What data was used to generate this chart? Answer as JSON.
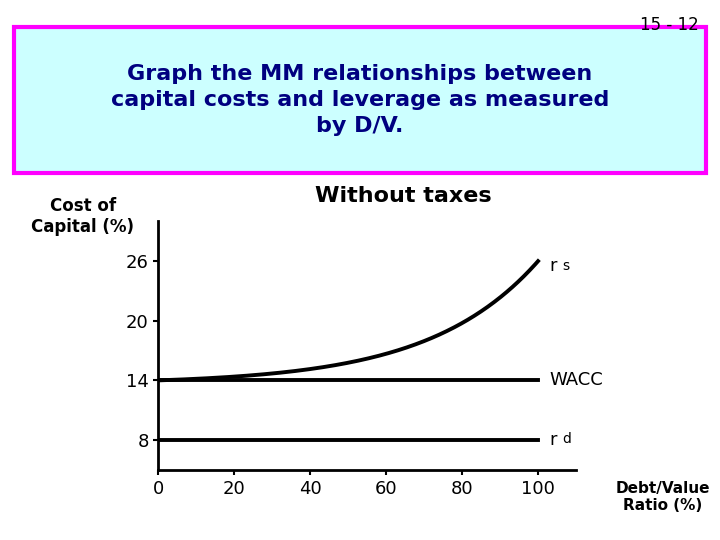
{
  "slide_number": "15 - 12",
  "title_text": "Graph the MM relationships between\ncapital costs and leverage as measured\nby D/V.",
  "subtitle": "Without taxes",
  "ylabel_line1": "Cost of",
  "ylabel_line2": "Capital (%)",
  "xlabel_line1": "Debt/Value",
  "xlabel_line2": "Ratio (%)",
  "x_ticks": [
    0,
    20,
    40,
    60,
    80,
    100
  ],
  "y_ticks": [
    8,
    14,
    20,
    26
  ],
  "xlim": [
    0,
    110
  ],
  "ylim": [
    5,
    30
  ],
  "wacc_value": 14,
  "rd_value": 8,
  "rs_k": 3.5,
  "rs_start": 14,
  "rs_end": 26,
  "background_color": "#ffffff",
  "title_bg_color": "#ccffff",
  "title_border_color": "#ff00ff",
  "title_text_color": "#000080",
  "curve_color": "#000000",
  "label_wacc": "WACC",
  "title_fontsize": 16,
  "subtitle_fontsize": 16,
  "tick_fontsize": 13,
  "label_fontsize": 13
}
